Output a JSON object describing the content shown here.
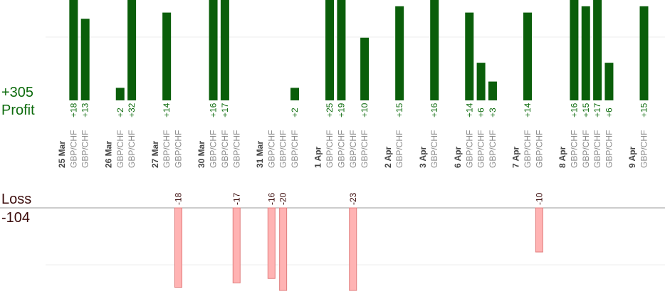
{
  "summary": {
    "profit_total": "+305",
    "profit_label": "Profit",
    "loss_label": "Loss",
    "loss_total": "-104"
  },
  "colors": {
    "profit_bar": "#0a5e0a",
    "profit_text": "#0d6b0d",
    "loss_bar": "#ffb3b3",
    "loss_bar_border": "#e07c7c",
    "loss_text": "#3a0a0a",
    "date_text": "#444444",
    "pair_text": "#8a8a8a",
    "grid": "#eeeeee",
    "axis": "#999999"
  },
  "chart_data": {
    "type": "bar",
    "title": "",
    "grid": true,
    "ylim_profit": [
      0,
      16
    ],
    "ylim_loss": [
      0,
      13
    ],
    "categories": [
      {
        "label": "25 Mar",
        "type": "date"
      },
      {
        "label": "GBP/CHF",
        "type": "pair",
        "value": 18
      },
      {
        "label": "GBP/CHF",
        "type": "pair",
        "value": 13
      },
      {
        "label": "",
        "type": "spacer"
      },
      {
        "label": "26 Mar",
        "type": "date"
      },
      {
        "label": "GBP/CHF",
        "type": "pair",
        "value": 2
      },
      {
        "label": "GBP/CHF",
        "type": "pair",
        "value": 32
      },
      {
        "label": "",
        "type": "spacer"
      },
      {
        "label": "27 Mar",
        "type": "date"
      },
      {
        "label": "GBP/CHF",
        "type": "pair",
        "value": 14
      },
      {
        "label": "GBP/CHF",
        "type": "pair",
        "value": -18
      },
      {
        "label": "",
        "type": "spacer"
      },
      {
        "label": "30 Mar",
        "type": "date"
      },
      {
        "label": "GBP/CHF",
        "type": "pair",
        "value": 16
      },
      {
        "label": "GBP/CHF",
        "type": "pair",
        "value": 17
      },
      {
        "label": "GBP/CHF",
        "type": "pair",
        "value": -17
      },
      {
        "label": "",
        "type": "spacer"
      },
      {
        "label": "31 Mar",
        "type": "date"
      },
      {
        "label": "GBP/CHF",
        "type": "pair",
        "value": -16
      },
      {
        "label": "GBP/CHF",
        "type": "pair",
        "value": -20
      },
      {
        "label": "GBP/CHF",
        "type": "pair",
        "value": 2
      },
      {
        "label": "",
        "type": "spacer"
      },
      {
        "label": "1 Apr",
        "type": "date"
      },
      {
        "label": "GBP/CHF",
        "type": "pair",
        "value": 25
      },
      {
        "label": "GBP/CHF",
        "type": "pair",
        "value": 19
      },
      {
        "label": "GBP/CHF",
        "type": "pair",
        "value": -23
      },
      {
        "label": "GBP/CHF",
        "type": "pair",
        "value": 10
      },
      {
        "label": "",
        "type": "spacer"
      },
      {
        "label": "2 Apr",
        "type": "date"
      },
      {
        "label": "GBP/CHF",
        "type": "pair",
        "value": 15
      },
      {
        "label": "",
        "type": "spacer"
      },
      {
        "label": "3 Apr",
        "type": "date"
      },
      {
        "label": "GBP/CHF",
        "type": "pair",
        "value": 16
      },
      {
        "label": "",
        "type": "spacer"
      },
      {
        "label": "6 Apr",
        "type": "date"
      },
      {
        "label": "GBP/CHF",
        "type": "pair",
        "value": 14
      },
      {
        "label": "GBP/CHF",
        "type": "pair",
        "value": 6
      },
      {
        "label": "GBP/CHF",
        "type": "pair",
        "value": 3
      },
      {
        "label": "",
        "type": "spacer"
      },
      {
        "label": "7 Apr",
        "type": "date"
      },
      {
        "label": "GBP/CHF",
        "type": "pair",
        "value": 14
      },
      {
        "label": "GBP/CHF",
        "type": "pair",
        "value": -10
      },
      {
        "label": "",
        "type": "spacer"
      },
      {
        "label": "8 Apr",
        "type": "date"
      },
      {
        "label": "GBP/CHF",
        "type": "pair",
        "value": 16
      },
      {
        "label": "GBP/CHF",
        "type": "pair",
        "value": 15
      },
      {
        "label": "GBP/CHF",
        "type": "pair",
        "value": 17
      },
      {
        "label": "GBP/CHF",
        "type": "pair",
        "value": 6
      },
      {
        "label": "",
        "type": "spacer"
      },
      {
        "label": "9 Apr",
        "type": "date"
      },
      {
        "label": "GBP/CHF",
        "type": "pair",
        "value": 15
      }
    ]
  }
}
